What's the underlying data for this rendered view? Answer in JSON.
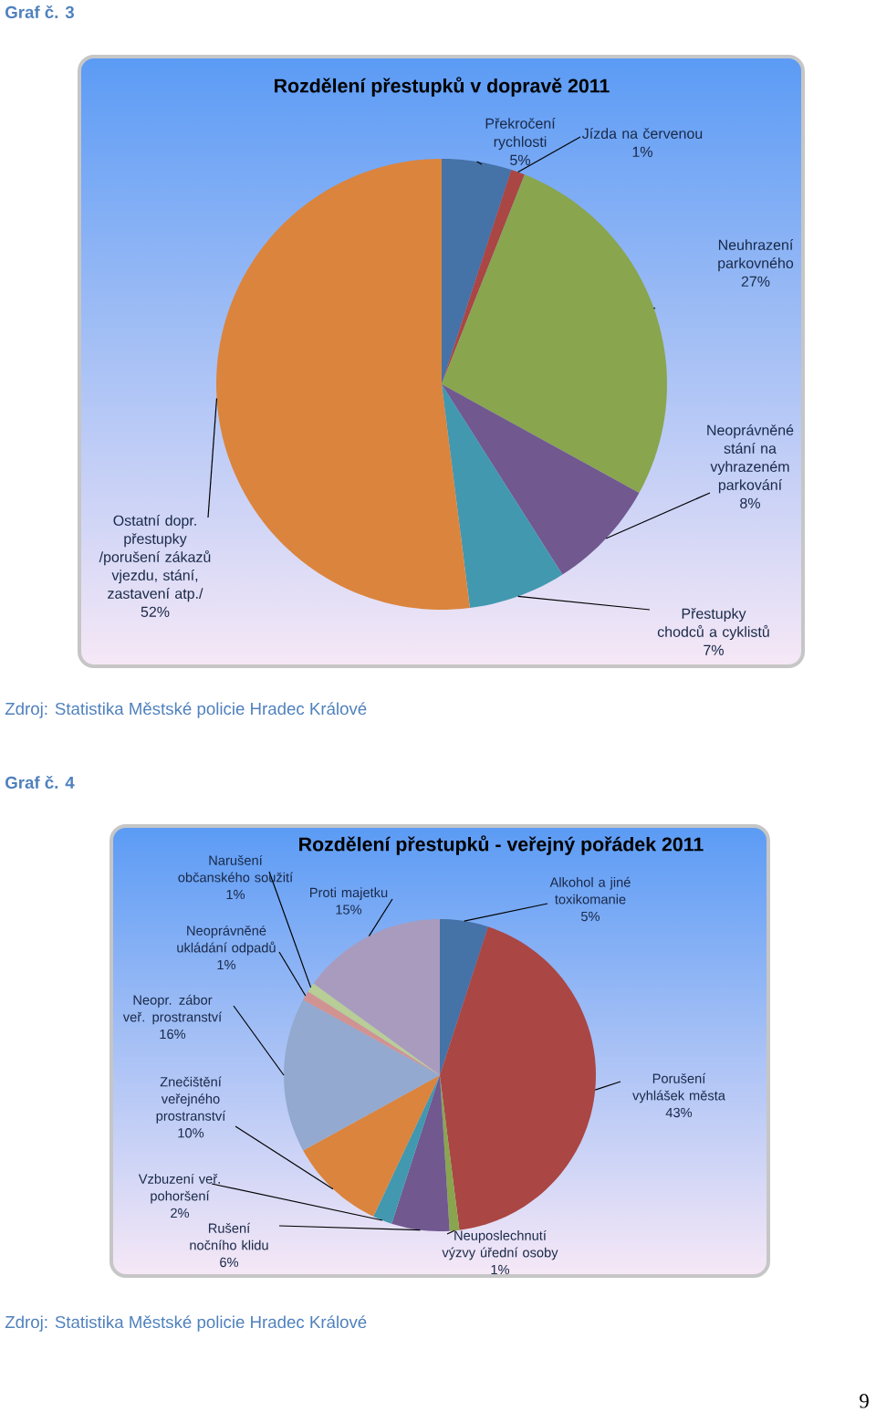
{
  "chart_data": [
    {
      "type": "pie",
      "title": "Rozdělení přestupků v dopravě 2011",
      "categories": [
        "Překročení rychlosti",
        "Jízda na červenou",
        "Neuhrazení parkovného",
        "Neoprávněné stání na vyhrazeném parkování",
        "Přestupky chodců a cyklistů",
        "Ostatní dopr. přestupky /porušení zákazů vjezdu, stání, zastavení atp./"
      ],
      "values": [
        5,
        1,
        27,
        8,
        7,
        52
      ],
      "value_labels": [
        "5%",
        "1%",
        "27%",
        "8%",
        "7%",
        "52%"
      ],
      "colors": [
        "#4572a7",
        "#aa4643",
        "#89a54e",
        "#71588f",
        "#4198af",
        "#db843d"
      ],
      "annotations": [
        "Graf č. 3",
        "Zdroj: Statistika Městské policie Hradec Králové"
      ]
    },
    {
      "type": "pie",
      "title": "Rozdělení přestupků - veřejný pořádek 2011",
      "categories": [
        "Alkohol a jiné toxikomanie",
        "Porušení vyhlášek města",
        "Neuposlechnutí výzvy úřední osoby",
        "Rušení nočního klidu",
        "Vzbuzení veř. pohoršení",
        "Znečištění veřejného prostranství",
        "Neopr. zábor veř. prostranství",
        "Neoprávněné ukládání odpadů",
        "Narušení občanského soužití",
        "Proti majetku"
      ],
      "values": [
        5,
        43,
        1,
        6,
        2,
        10,
        16,
        1,
        1,
        15
      ],
      "value_labels": [
        "5%",
        "43%",
        "1%",
        "6%",
        "2%",
        "10%",
        "16%",
        "1%",
        "1%",
        "15%"
      ],
      "colors": [
        "#4572a7",
        "#aa4643",
        "#89a54e",
        "#71588f",
        "#4198af",
        "#db843d",
        "#93a9cf",
        "#d19392",
        "#b9cd96",
        "#a99bbd"
      ],
      "annotations": [
        "Graf č. 4",
        "Zdroj: Statistika Městské policie Hradec Králové",
        "9"
      ]
    }
  ]
}
